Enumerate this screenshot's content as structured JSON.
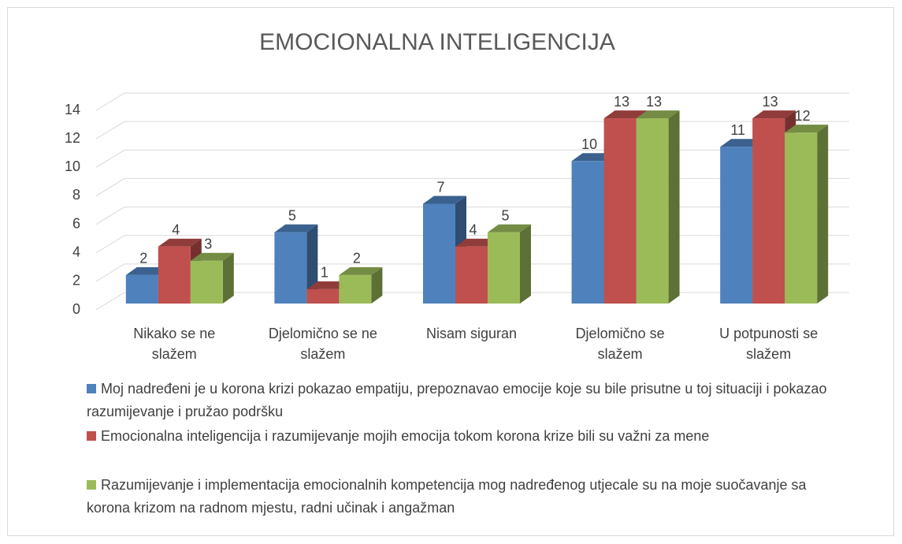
{
  "chart_data": {
    "type": "bar3d",
    "title": "EMOCIONALNA INTELIGENCIJA",
    "categories": [
      "Nikako se ne slažem",
      "Djelomično se ne slažem",
      "Nisam siguran",
      "Djelomično se slažem",
      "U potpunosti se slažem"
    ],
    "series": [
      {
        "name": "Moj nadređeni je u korona krizi pokazao empatiju, prepoznavao emocije koje su bile prisutne u toj situaciji i pokazao razumijevanje i pružao podršku",
        "color": "#4f81bd",
        "values": [
          2,
          5,
          7,
          10,
          11
        ]
      },
      {
        "name": "Emocionalna inteligencija i razumijevanje mojih emocija tokom korona krize bili su važni za mene",
        "color": "#c0504d",
        "values": [
          4,
          1,
          4,
          13,
          13
        ]
      },
      {
        "name": "Razumijevanje i implementacija emocionalnih kompetencija mog nadređenog utjecale su na moje suočavanje sa korona krizom na radnom mjestu, radni učinak i angažman",
        "color": "#9bbb59",
        "values": [
          3,
          2,
          5,
          13,
          12
        ]
      }
    ],
    "ylim": [
      0,
      14
    ],
    "yticks": [
      0,
      2,
      4,
      6,
      8,
      10,
      12,
      14
    ],
    "grid": true,
    "legend": "bottom"
  }
}
